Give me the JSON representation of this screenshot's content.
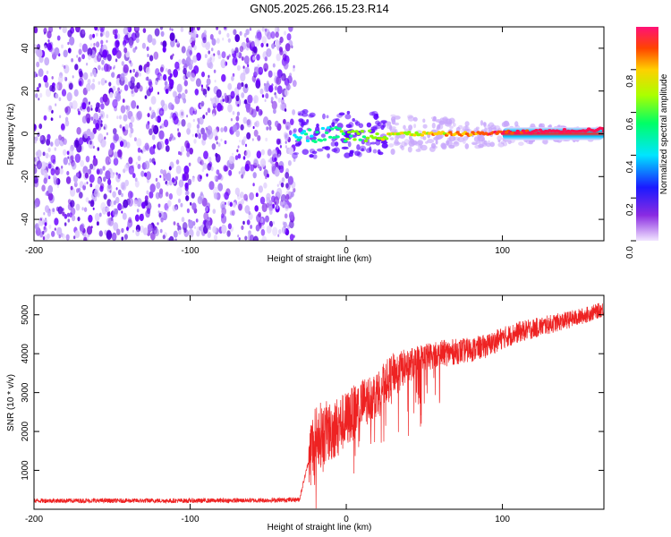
{
  "title": "GN05.2025.266.15.23.R14",
  "chart_data": [
    {
      "type": "heatmap",
      "title": "GN05.2025.266.15.23.R14",
      "xlabel": "Height of straight line (km)",
      "ylabel": "Frequency (Hz)",
      "xlim": [
        -200,
        165
      ],
      "ylim": [
        -50,
        50
      ],
      "xticks": [
        -200,
        -100,
        0,
        100
      ],
      "yticks": [
        -40,
        -20,
        0,
        20,
        40
      ],
      "noise_region_x": [
        -200,
        -33
      ],
      "signal_onset_x": -33,
      "signal_freq_hz": [
        {
          "x": -30,
          "f": 0
        },
        {
          "x": -20,
          "f": -1
        },
        {
          "x": -10,
          "f": 1
        },
        {
          "x": 0,
          "f": -1
        },
        {
          "x": 20,
          "f": 0
        },
        {
          "x": 50,
          "f": 0
        },
        {
          "x": 80,
          "f": 0
        },
        {
          "x": 120,
          "f": 1
        },
        {
          "x": 165,
          "f": 2
        }
      ],
      "colorbar": {
        "label": "Normalized spectral amplitude",
        "range": [
          0,
          1
        ],
        "ticks": [
          "0.0",
          "0.2",
          "0.4",
          "0.6",
          "0.8"
        ]
      }
    },
    {
      "type": "line",
      "xlabel": "Height of straight line (km)",
      "ylabel": "SNR (10 * v/v)",
      "xlim": [
        -200,
        165
      ],
      "ylim": [
        0,
        5500
      ],
      "xticks": [
        -200,
        -100,
        0,
        100
      ],
      "yticks": [
        1000,
        2000,
        3000,
        4000,
        5000
      ],
      "series": [
        {
          "name": "SNR",
          "color": "#ee2222",
          "x": [
            -200,
            -150,
            -100,
            -50,
            -30,
            -22,
            -18,
            -10,
            0,
            10,
            20,
            30,
            40,
            50,
            60,
            70,
            80,
            90,
            100,
            110,
            120,
            130,
            140,
            150,
            165
          ],
          "y": [
            220,
            220,
            220,
            230,
            250,
            1600,
            1900,
            2000,
            2300,
            2700,
            3000,
            3500,
            3700,
            3900,
            4000,
            4050,
            4100,
            4200,
            4400,
            4550,
            4650,
            4750,
            4850,
            4950,
            5150
          ]
        }
      ]
    }
  ]
}
